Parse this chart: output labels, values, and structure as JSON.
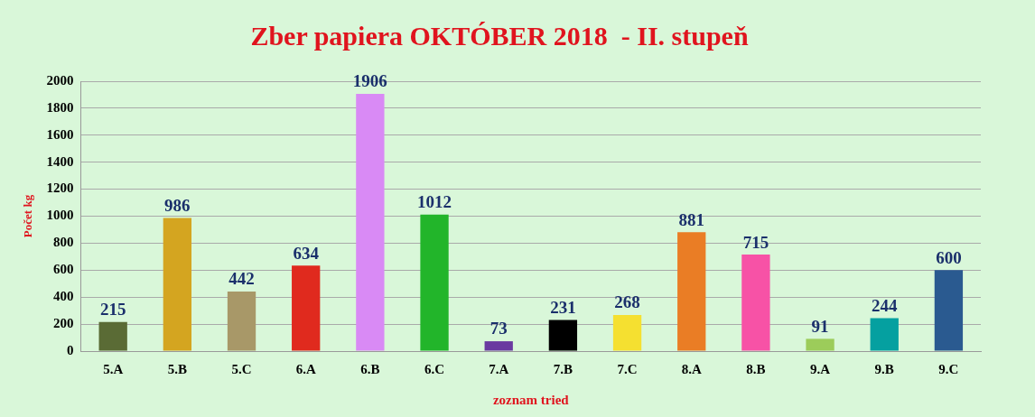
{
  "chart_data": {
    "type": "bar",
    "title": "Zber papiera OKTÓBER 2018  - II. stupeň",
    "xlabel": "zoznam tried",
    "ylabel": "Počet kg",
    "categories": [
      "5.A",
      "5.B",
      "5.C",
      "6.A",
      "6.B",
      "6.C",
      "7.A",
      "7.B",
      "7.C",
      "8.A",
      "8.B",
      "9.A",
      "9.B",
      "9.C"
    ],
    "values": [
      215,
      986,
      442,
      634,
      1906,
      1012,
      73,
      231,
      268,
      881,
      715,
      91,
      244,
      600
    ],
    "colors": [
      "#5a6b35",
      "#d4a520",
      "#a89868",
      "#e02a1e",
      "#d98af5",
      "#22b52a",
      "#6a3aa0",
      "#000000",
      "#f5e030",
      "#ea7d25",
      "#f752a6",
      "#9ccc5a",
      "#05a0a0",
      "#2a5a90"
    ],
    "ylim": [
      0,
      2000
    ],
    "yticks": [
      0,
      200,
      400,
      600,
      800,
      1000,
      1200,
      1400,
      1600,
      1800,
      2000
    ],
    "grid": "y",
    "data_labels": true,
    "legend": false
  }
}
